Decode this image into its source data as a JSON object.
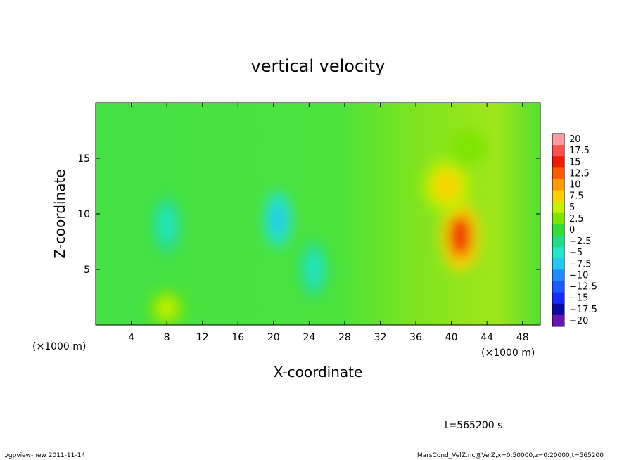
{
  "chart_data": {
    "type": "heatmap",
    "title": "vertical velocity",
    "xlabel": "X-coordinate",
    "ylabel": "Z-coordinate",
    "x_unit_label_left": "(×1000 m)",
    "x_unit_label_right": "(×1000 m)",
    "xlim": [
      0,
      50
    ],
    "ylim": [
      0,
      20
    ],
    "x_ticks": [
      4,
      8,
      12,
      16,
      20,
      24,
      28,
      32,
      36,
      40,
      44,
      48
    ],
    "x_tick_labels": [
      "4",
      "8",
      "12",
      "16",
      "20",
      "24",
      "28",
      "32",
      "36",
      "40",
      "44",
      "48"
    ],
    "y_ticks": [
      5,
      10,
      15
    ],
    "y_tick_labels": [
      "5",
      "10",
      "15"
    ],
    "colorbar": {
      "levels": [
        20,
        17.5,
        15,
        12.5,
        10,
        7.5,
        5,
        2.5,
        0,
        -2.5,
        -5,
        -7.5,
        -10,
        -12.5,
        -15,
        -17.5,
        -20
      ],
      "labels": [
        "20",
        "17.5",
        "15",
        "12.5",
        "10",
        "7.5",
        "5",
        "2.5",
        "0",
        "−2.5",
        "−5",
        "−7.5",
        "−10",
        "−12.5",
        "−15",
        "−17.5",
        "−20"
      ],
      "colors": [
        "#ff9aa0",
        "#ff4f4f",
        "#f01a00",
        "#ff5a00",
        "#ff9a00",
        "#ffd000",
        "#c8f000",
        "#7ce600",
        "#33dd33",
        "#22dd88",
        "#22e6c8",
        "#22c8f0",
        "#1e8cff",
        "#1a5aff",
        "#1a2aff",
        "#0a0aa0",
        "#6a14b4"
      ]
    },
    "features": [
      {
        "x": 41,
        "z": 8,
        "value": 15,
        "kind": "updraft core"
      },
      {
        "x": 39.5,
        "z": 12.5,
        "value": 8,
        "kind": "updraft upper lobe"
      },
      {
        "x": 20.5,
        "z": 9.5,
        "value": -8,
        "kind": "downdraft"
      },
      {
        "x": 24.5,
        "z": 5,
        "value": -6,
        "kind": "downdraft"
      },
      {
        "x": 8,
        "z": 9,
        "value": -5,
        "kind": "downdraft"
      },
      {
        "x": 8,
        "z": 1.5,
        "value": 4,
        "kind": "weak updraft"
      },
      {
        "x": 42,
        "z": 16,
        "value": 2.5,
        "kind": "weak updraft"
      }
    ]
  },
  "info": {
    "time_label": "t=565200 s",
    "footer_left": "./gpview-new   2011-11-14",
    "footer_right": "MarsCond_VelZ.nc@VelZ,x=0:50000,z=0:20000,t=565200"
  }
}
